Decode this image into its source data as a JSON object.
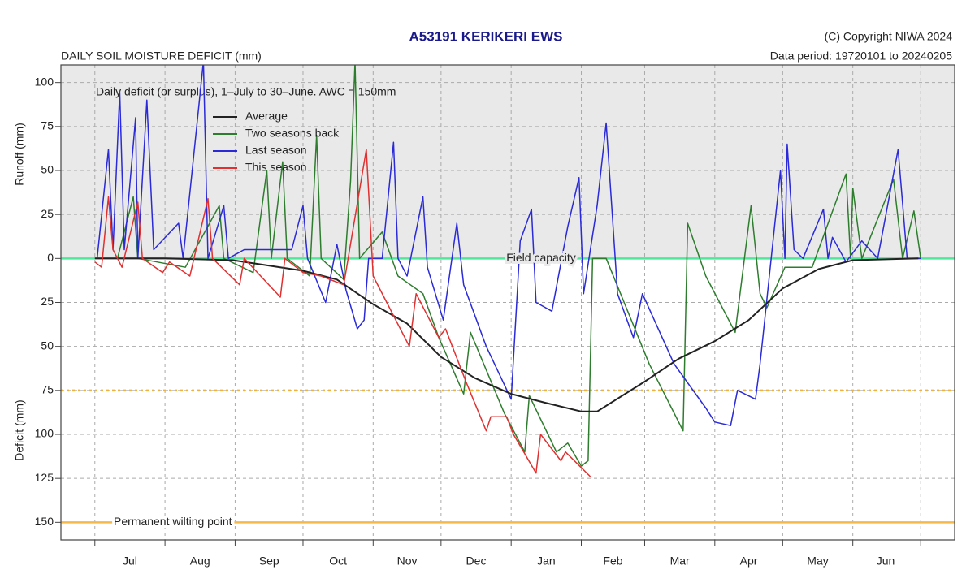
{
  "chart_data": {
    "type": "line",
    "title": "A53191  KERIKERI EWS",
    "copyright": "(C) Copyright NIWA  2024",
    "data_period": "Data period:  19720101  to  20240205",
    "subtitle": "DAILY SOIL MOISTURE DEFICIT (mm)",
    "annotation": "Daily deficit (or surplus), 1–July to 30–June.  AWC = 150mm",
    "y_label_top": "Runoff (mm)",
    "y_label_bottom": "Deficit (mm)",
    "xlim": [
      -15,
      380
    ],
    "ylim": [
      -160,
      110
    ],
    "yticks": [
      100,
      75,
      50,
      25,
      0,
      {
        "value": -25,
        "label": "25"
      },
      {
        "value": -50,
        "label": "50"
      },
      {
        "value": -75,
        "label": "75"
      },
      {
        "value": -100,
        "label": "100"
      },
      {
        "value": -125,
        "label": "125"
      },
      {
        "value": -150,
        "label": "150"
      }
    ],
    "xticks": [
      {
        "value": 15.5,
        "label": "Jul"
      },
      {
        "value": 46.5,
        "label": "Aug"
      },
      {
        "value": 77,
        "label": "Sep"
      },
      {
        "value": 107.5,
        "label": "Oct"
      },
      {
        "value": 138,
        "label": "Nov"
      },
      {
        "value": 168.5,
        "label": "Dec"
      },
      {
        "value": 199.5,
        "label": "Jan"
      },
      {
        "value": 229,
        "label": "Feb"
      },
      {
        "value": 258.5,
        "label": "Mar"
      },
      {
        "value": 289,
        "label": "Apr"
      },
      {
        "value": 319.5,
        "label": "May"
      },
      {
        "value": 349.5,
        "label": "Jun"
      }
    ],
    "month_boundaries": [
      0,
      31,
      62,
      92,
      123,
      153,
      184,
      215,
      243,
      274,
      304,
      335,
      365
    ],
    "grid": true,
    "surplus_shading": "#e9e9e9",
    "reference_lines": [
      {
        "value": 0,
        "label": "Field capacity",
        "color": "#4ee89a",
        "dashed": false
      },
      {
        "value": -75,
        "color": "#f0b23c",
        "dashed": true
      },
      {
        "value": -150,
        "label": "Permanent wilting point",
        "color": "#f5b84a",
        "dashed": false
      }
    ],
    "legend": "top-left",
    "series": [
      {
        "name": "Average",
        "color": "#222222",
        "x": [
          0,
          31,
          61,
          92,
          107,
          123,
          138,
          153,
          168,
          184,
          199,
          215,
          222,
          243,
          258,
          274,
          289,
          304,
          320,
          335,
          364
        ],
        "values": [
          0,
          0,
          -1,
          -7,
          -12,
          -26,
          -37,
          -56,
          -68,
          -77,
          -82,
          -87,
          -87,
          -70,
          -57,
          -47,
          -35,
          -17,
          -6,
          -1,
          0
        ]
      },
      {
        "name": "Two seasons back",
        "color": "#2e7d2e",
        "x": [
          0,
          10,
          17,
          19,
          40,
          55,
          57,
          70,
          76,
          78,
          83,
          85,
          95,
          98,
          100,
          110,
          113,
          115,
          117,
          127,
          134,
          145,
          152,
          163,
          166,
          181,
          190,
          192,
          204,
          209,
          215,
          218,
          220,
          226,
          245,
          260,
          262,
          270,
          283,
          290,
          294,
          297,
          305,
          317,
          332,
          334,
          335,
          339,
          353,
          357,
          362,
          365
        ],
        "values": [
          0,
          0,
          35,
          0,
          -5,
          30,
          0,
          -8,
          50,
          0,
          55,
          0,
          -10,
          70,
          0,
          -12,
          44,
          112,
          0,
          15,
          -10,
          -20,
          -45,
          -77,
          -42,
          -88,
          -110,
          -78,
          -110,
          -105,
          -118,
          -115,
          0,
          0,
          -60,
          -98,
          20,
          -10,
          -42,
          30,
          -20,
          -28,
          -5,
          -5,
          48,
          0,
          40,
          0,
          45,
          0,
          27,
          0
        ]
      },
      {
        "name": "Last season",
        "color": "#2a2ad8",
        "x": [
          1,
          6,
          8,
          11,
          13,
          18,
          19,
          23,
          26,
          37,
          39,
          48,
          50,
          57,
          59,
          66,
          75,
          87,
          92,
          94,
          102,
          107,
          111,
          116,
          119,
          121,
          127,
          132,
          134,
          138,
          145,
          147,
          154,
          160,
          163,
          173,
          184,
          188,
          193,
          195,
          202,
          209,
          214,
          216,
          222,
          226,
          231,
          238,
          242,
          256,
          270,
          274,
          281,
          284,
          292,
          294,
          303,
          305,
          306,
          309,
          313,
          322,
          324,
          326,
          332,
          339,
          346,
          355,
          359,
          365
        ],
        "values": [
          0,
          62,
          5,
          95,
          5,
          80,
          0,
          90,
          5,
          20,
          0,
          112,
          0,
          30,
          0,
          5,
          5,
          5,
          30,
          0,
          -25,
          8,
          -18,
          -40,
          -35,
          0,
          0,
          66,
          0,
          -10,
          35,
          -5,
          -35,
          20,
          -15,
          -50,
          -80,
          10,
          28,
          -25,
          -30,
          18,
          46,
          -20,
          30,
          77,
          -20,
          -45,
          -20,
          -60,
          -85,
          -93,
          -95,
          -75,
          -80,
          -60,
          50,
          0,
          65,
          5,
          0,
          28,
          0,
          12,
          -2,
          10,
          0,
          62,
          0,
          0
        ]
      },
      {
        "name": "This season",
        "color": "#e03030",
        "x": [
          0,
          3,
          6,
          8,
          12,
          19,
          21,
          30,
          33,
          42,
          50,
          52,
          64,
          66,
          82,
          84,
          92,
          100,
          110,
          120,
          123,
          139,
          142,
          152,
          155,
          164,
          173,
          175,
          182,
          185,
          195,
          197,
          206,
          208,
          219
        ],
        "values": [
          -2,
          -5,
          35,
          5,
          -5,
          32,
          0,
          -8,
          -2,
          -10,
          34,
          0,
          -15,
          0,
          -22,
          0,
          -8,
          -10,
          -15,
          62,
          -10,
          -50,
          -20,
          -45,
          -40,
          -70,
          -98,
          -90,
          -90,
          -100,
          -122,
          -100,
          -115,
          -110,
          -124
        ]
      }
    ]
  }
}
